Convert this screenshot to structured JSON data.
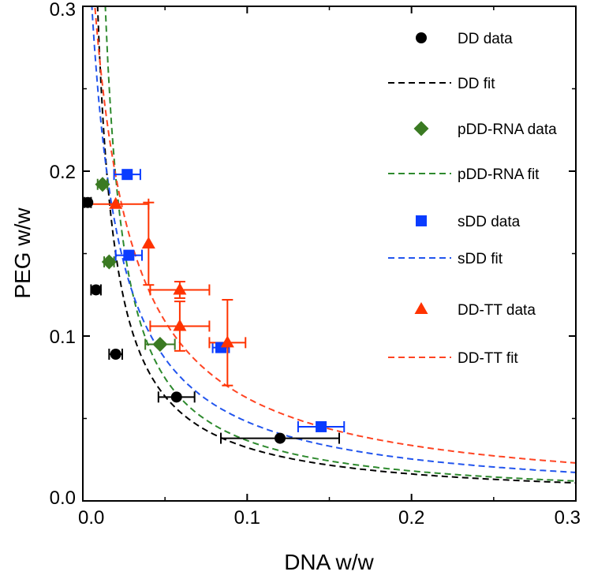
{
  "chart_data": {
    "type": "scatter",
    "xlabel": "DNA w/w",
    "ylabel": "PEG w/w",
    "xlim": [
      0.0,
      0.3
    ],
    "ylim": [
      0.0,
      0.3
    ],
    "x_ticks": [
      "0.0",
      "0.1",
      "0.2",
      "0.3"
    ],
    "y_ticks": [
      "0.0",
      "0.1",
      "0.2",
      "0.3"
    ],
    "legend_position": "top-right",
    "grid": false,
    "series": [
      {
        "name": "DD data",
        "kind": "points",
        "marker": "circle",
        "color": "#000000",
        "points": [
          {
            "x": 0.003,
            "y": 0.181,
            "xerr": 0.002
          },
          {
            "x": 0.008,
            "y": 0.128,
            "xerr": 0.003
          },
          {
            "x": 0.02,
            "y": 0.089,
            "xerr": 0.004
          },
          {
            "x": 0.057,
            "y": 0.063,
            "xerr": 0.011
          },
          {
            "x": 0.12,
            "y": 0.038,
            "xerr": 0.036
          }
        ]
      },
      {
        "name": "DD fit",
        "kind": "fit",
        "color": "#000000",
        "k": 0.0033,
        "x0": -0.002
      },
      {
        "name": "pDD-RNA data",
        "kind": "points",
        "marker": "diamond",
        "color": "#3a7a22",
        "points": [
          {
            "x": 0.012,
            "y": 0.192,
            "xerr": 0.003
          },
          {
            "x": 0.016,
            "y": 0.145,
            "xerr": 0.003
          },
          {
            "x": 0.047,
            "y": 0.095,
            "xerr": 0.009
          }
        ]
      },
      {
        "name": "pDD-RNA fit",
        "kind": "fit",
        "color": "#2e8a2e",
        "k": 0.0036,
        "x0": 0.0017
      },
      {
        "name": "sDD data",
        "kind": "points",
        "marker": "square",
        "color": "#0a3cff",
        "points": [
          {
            "x": 0.027,
            "y": 0.198,
            "xerr": 0.008
          },
          {
            "x": 0.028,
            "y": 0.149,
            "xerr": 0.008
          },
          {
            "x": 0.084,
            "y": 0.093,
            "xerr": 0.005
          },
          {
            "x": 0.145,
            "y": 0.045,
            "xerr": 0.014
          }
        ]
      },
      {
        "name": "sDD fit",
        "kind": "fit",
        "color": "#2255ee",
        "k": 0.0054,
        "x0": -0.0125
      },
      {
        "name": "DD-TT data",
        "kind": "points",
        "marker": "triangle",
        "color": "#ff3300",
        "points": [
          {
            "x": 0.02,
            "y": 0.18,
            "xerr": 0.02
          },
          {
            "x": 0.04,
            "y": 0.156,
            "xerr": 0.0,
            "yerr": 0.025
          },
          {
            "x": 0.059,
            "y": 0.128,
            "xerr": 0.018,
            "yerr": 0.005
          },
          {
            "x": 0.059,
            "y": 0.106,
            "xerr": 0.018,
            "yerr": 0.015
          },
          {
            "x": 0.088,
            "y": 0.096,
            "xerr": 0.011,
            "yerr": 0.026
          }
        ]
      },
      {
        "name": "DD-TT fit",
        "kind": "fit",
        "color": "#ff4422",
        "k": 0.0073,
        "x0": -0.017
      }
    ]
  }
}
